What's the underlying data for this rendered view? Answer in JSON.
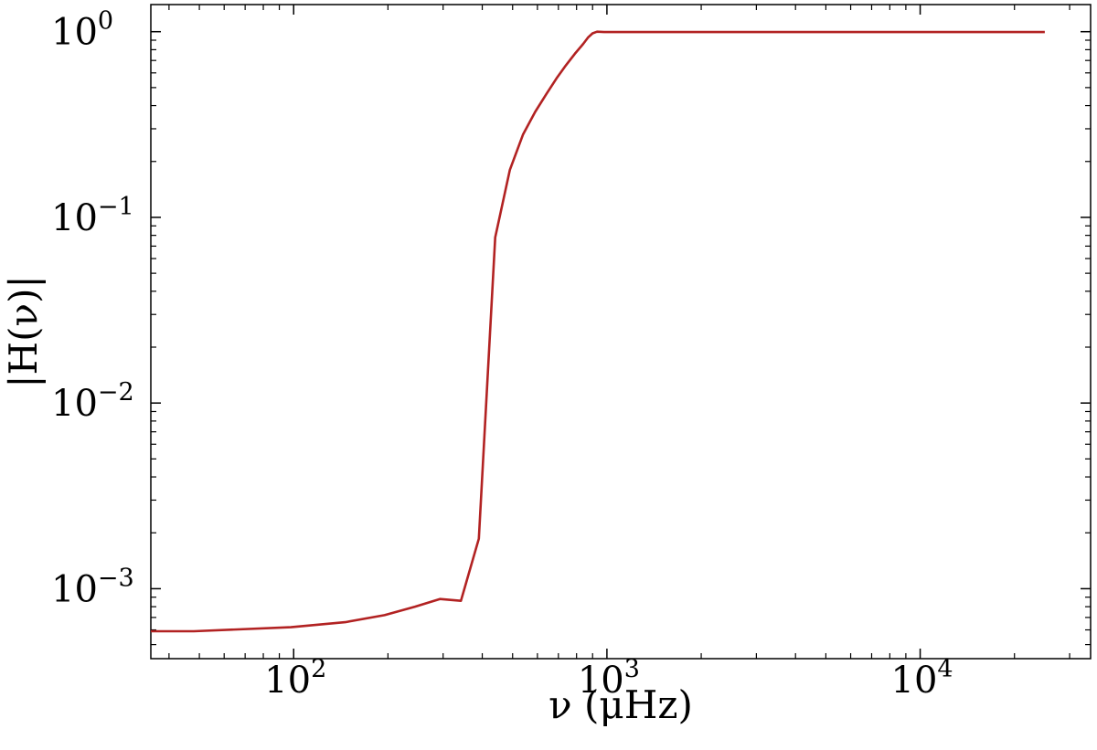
{
  "chart_data": {
    "type": "line",
    "xlabel": "ν (μHz)",
    "ylabel": "|H(ν)|",
    "xscale": "log",
    "yscale": "log",
    "xlim": [
      35,
      35000
    ],
    "ylim": [
      0.00042,
      1.4
    ],
    "grid": false,
    "x_ticks": [
      {
        "value": 100,
        "base": "10",
        "exp": "2"
      },
      {
        "value": 1000,
        "base": "10",
        "exp": "3"
      },
      {
        "value": 10000,
        "base": "10",
        "exp": "4"
      }
    ],
    "y_ticks": [
      {
        "value": 1,
        "base": "10",
        "exp": "0"
      },
      {
        "value": 0.1,
        "base": "10",
        "exp": "−1"
      },
      {
        "value": 0.01,
        "base": "10",
        "exp": "−2"
      },
      {
        "value": 0.001,
        "base": "10",
        "exp": "−3"
      }
    ],
    "series": [
      {
        "color": "#b22222",
        "x": [
          35,
          48,
          98,
          146,
          195,
          244,
          293,
          342,
          390,
          440,
          490,
          540,
          590,
          640,
          690,
          740,
          790,
          840,
          870,
          900,
          930,
          980,
          25000
        ],
        "y": [
          0.00059,
          0.00059,
          0.00062,
          0.00066,
          0.00072,
          0.0008,
          0.00088,
          0.00086,
          0.00186,
          0.078,
          0.18,
          0.28,
          0.37,
          0.46,
          0.56,
          0.66,
          0.76,
          0.86,
          0.93,
          0.98,
          1.0,
          0.995,
          0.995
        ]
      }
    ]
  }
}
